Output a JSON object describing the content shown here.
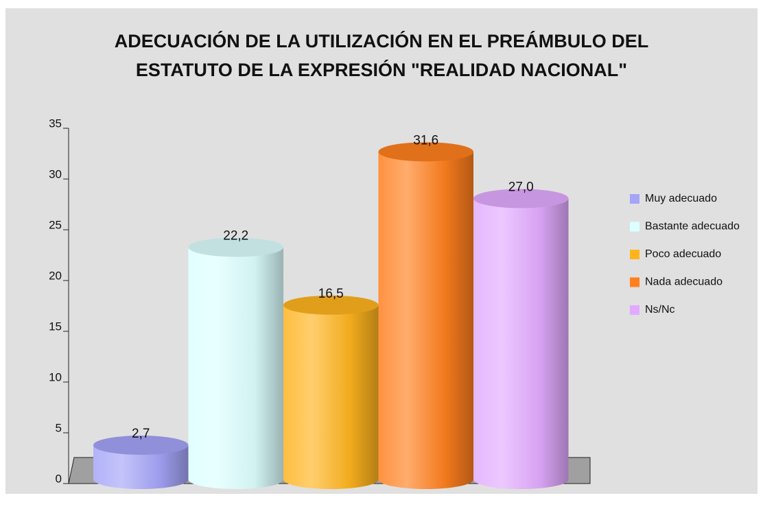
{
  "chart_data": {
    "type": "cylinder-bar",
    "title": [
      "ADECUACIÓN DE LA UTILIZACIÓN EN EL PREÁMBULO DEL",
      "ESTATUTO DE LA EXPRESIÓN \"REALIDAD NACIONAL\""
    ],
    "series": [
      {
        "name": "Muy  adecuado",
        "color": "#a4a4f8",
        "values": [
          2.7
        ],
        "value_labels": [
          "2,7"
        ]
      },
      {
        "name": "Bastante adecuado",
        "color": "#dcffff",
        "values": [
          22.2
        ],
        "value_labels": [
          "22,2"
        ]
      },
      {
        "name": "Poco adecuado",
        "color": "#ffb41e",
        "values": [
          16.5
        ],
        "value_labels": [
          "16,5"
        ]
      },
      {
        "name": "Nada adecuado",
        "color": "#ff7f1e",
        "values": [
          31.6
        ],
        "value_labels": [
          "31,6"
        ]
      },
      {
        "name": "Ns/Nc",
        "color": "#e2aaff",
        "values": [
          27.0
        ],
        "value_labels": [
          "27,0"
        ]
      }
    ],
    "ylim": [
      0,
      35
    ],
    "yticks": [
      0,
      5,
      10,
      15,
      20,
      25,
      30,
      35
    ],
    "legend": "right"
  }
}
